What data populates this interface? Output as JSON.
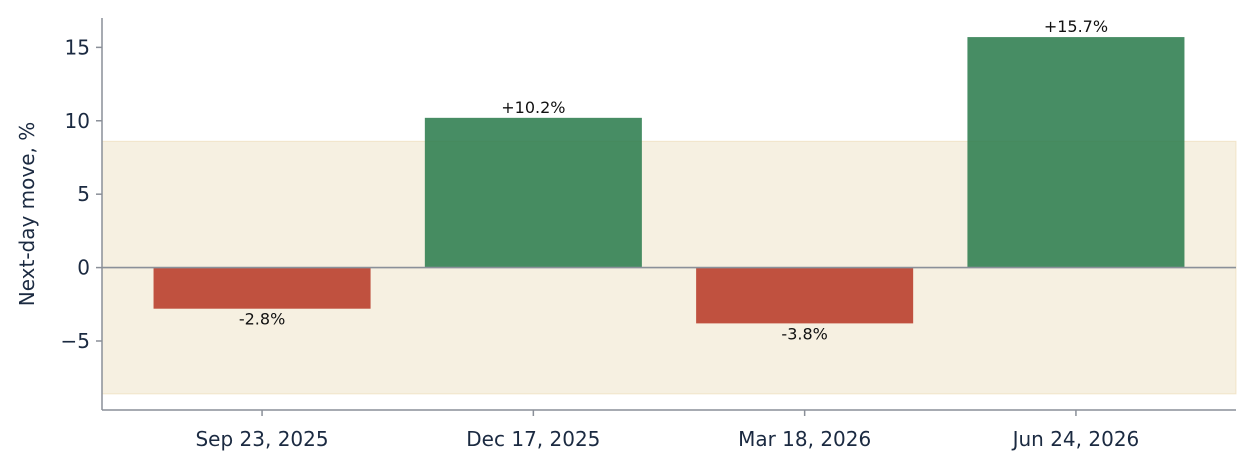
{
  "chart_data": {
    "type": "bar",
    "categories": [
      "Sep 23, 2025",
      "Dec 17, 2025",
      "Mar 18, 2026",
      "Jun 24, 2026"
    ],
    "values": [
      -2.8,
      10.2,
      -3.8,
      15.7
    ],
    "data_labels": [
      "-2.8%",
      "+10.2%",
      "-3.8%",
      "+15.7%"
    ],
    "title": "",
    "xlabel": "",
    "ylabel": "Next-day move, %",
    "ylim": [
      -9.7,
      17.0
    ],
    "yticks": [
      -5,
      0,
      5,
      10,
      15
    ],
    "ytick_labels": [
      "−5",
      "0",
      "5",
      "10",
      "15"
    ],
    "band": [
      -8.6,
      8.6
    ],
    "grid": false,
    "legend": "none",
    "colors": {
      "positive": "#2e7d4f",
      "negative": "#b83a28",
      "band": "#efe3c8"
    }
  }
}
